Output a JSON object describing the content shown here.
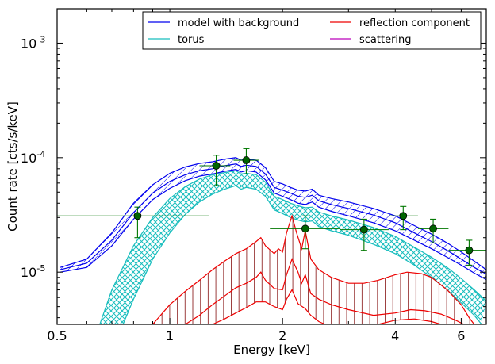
{
  "chart_data": {
    "type": "line",
    "xlabel": "Energy [keV]",
    "ylabel": "Count rate [cts/s/keV]",
    "x_scale": "log",
    "y_scale": "log",
    "xlim": [
      0.5,
      7.0
    ],
    "ylim": [
      3.5e-06,
      0.002
    ],
    "x_ticks": [
      {
        "value": 0.5,
        "label": "0.5"
      },
      {
        "value": 1,
        "label": "1"
      },
      {
        "value": 2,
        "label": "2"
      },
      {
        "value": 4,
        "label": "4"
      },
      {
        "value": 6,
        "label": "6"
      }
    ],
    "y_ticks": [
      {
        "value": 1e-05,
        "base": "10",
        "exp": "-5"
      },
      {
        "value": 0.0001,
        "base": "10",
        "exp": "-4"
      },
      {
        "value": 0.001,
        "base": "10",
        "exp": "-3"
      }
    ],
    "legend": {
      "placement": "top-right",
      "columns": 2,
      "entries": [
        {
          "name": "model with background",
          "color": "#0000ee"
        },
        {
          "name": "torus",
          "color": "#18bdbd"
        },
        {
          "name": "reflection component",
          "color": "#ee0000"
        },
        {
          "name": "scattering",
          "color": "#bb00bb"
        }
      ]
    },
    "colors": {
      "model": "#0000ee",
      "torus": "#18bdbd",
      "reflection": "#ee0000",
      "reflection_hatch": "#9b3b3b",
      "data": "#007700",
      "data_marker": "#006400"
    },
    "series": [
      {
        "name": "model with background",
        "band": true,
        "upper": [
          [
            0.51,
            1.1e-05
          ],
          [
            0.6,
            1.3e-05
          ],
          [
            0.7,
            2.2e-05
          ],
          [
            0.8,
            4e-05
          ],
          [
            0.9,
            5.8e-05
          ],
          [
            1.0,
            7.3e-05
          ],
          [
            1.1,
            8.3e-05
          ],
          [
            1.2,
            8.9e-05
          ],
          [
            1.3,
            9.2e-05
          ],
          [
            1.4,
            9.7e-05
          ],
          [
            1.5,
            0.0001
          ],
          [
            1.55,
            9.5e-05
          ],
          [
            1.6,
            9.7e-05
          ],
          [
            1.7,
            9.5e-05
          ],
          [
            1.8,
            8.2e-05
          ],
          [
            1.9,
            6.2e-05
          ],
          [
            2.0,
            5.9e-05
          ],
          [
            2.1,
            5.5e-05
          ],
          [
            2.2,
            5.2e-05
          ],
          [
            2.3,
            5.1e-05
          ],
          [
            2.4,
            5.3e-05
          ],
          [
            2.5,
            4.7e-05
          ],
          [
            2.7,
            4.4e-05
          ],
          [
            3.0,
            4.1e-05
          ],
          [
            3.5,
            3.6e-05
          ],
          [
            4.0,
            3.1e-05
          ],
          [
            4.5,
            2.55e-05
          ],
          [
            5.0,
            2.15e-05
          ],
          [
            5.5,
            1.8e-05
          ],
          [
            6.0,
            1.5e-05
          ],
          [
            6.5,
            1.25e-05
          ],
          [
            7.0,
            1.05e-05
          ]
        ],
        "mid": [
          [
            0.51,
            1.05e-05
          ],
          [
            0.6,
            1.2e-05
          ],
          [
            0.7,
            1.9e-05
          ],
          [
            0.8,
            3.3e-05
          ],
          [
            0.9,
            4.9e-05
          ],
          [
            1.0,
            6.2e-05
          ],
          [
            1.1,
            7.1e-05
          ],
          [
            1.2,
            7.7e-05
          ],
          [
            1.3,
            8e-05
          ],
          [
            1.4,
            8.5e-05
          ],
          [
            1.5,
            8.8e-05
          ],
          [
            1.55,
            8.4e-05
          ],
          [
            1.6,
            8.6e-05
          ],
          [
            1.7,
            8.4e-05
          ],
          [
            1.8,
            7.2e-05
          ],
          [
            1.9,
            5.5e-05
          ],
          [
            2.0,
            5.2e-05
          ],
          [
            2.1,
            4.9e-05
          ],
          [
            2.2,
            4.6e-05
          ],
          [
            2.3,
            4.5e-05
          ],
          [
            2.4,
            4.7e-05
          ],
          [
            2.5,
            4.2e-05
          ],
          [
            2.7,
            3.9e-05
          ],
          [
            3.0,
            3.6e-05
          ],
          [
            3.5,
            3.15e-05
          ],
          [
            4.0,
            2.7e-05
          ],
          [
            4.5,
            2.2e-05
          ],
          [
            5.0,
            1.85e-05
          ],
          [
            5.5,
            1.55e-05
          ],
          [
            6.0,
            1.3e-05
          ],
          [
            6.5,
            1.1e-05
          ],
          [
            7.0,
            9.6e-06
          ]
        ],
        "lower": [
          [
            0.51,
            1e-05
          ],
          [
            0.6,
            1.1e-05
          ],
          [
            0.7,
            1.7e-05
          ],
          [
            0.8,
            2.9e-05
          ],
          [
            0.9,
            4.3e-05
          ],
          [
            1.0,
            5.4e-05
          ],
          [
            1.1,
            6.3e-05
          ],
          [
            1.2,
            6.9e-05
          ],
          [
            1.3,
            7.2e-05
          ],
          [
            1.4,
            7.6e-05
          ],
          [
            1.5,
            7.9e-05
          ],
          [
            1.55,
            7.5e-05
          ],
          [
            1.6,
            7.7e-05
          ],
          [
            1.7,
            7.5e-05
          ],
          [
            1.8,
            6.4e-05
          ],
          [
            1.9,
            4.9e-05
          ],
          [
            2.0,
            4.6e-05
          ],
          [
            2.1,
            4.3e-05
          ],
          [
            2.2,
            4e-05
          ],
          [
            2.3,
            3.9e-05
          ],
          [
            2.4,
            4.1e-05
          ],
          [
            2.5,
            3.7e-05
          ],
          [
            2.7,
            3.4e-05
          ],
          [
            3.0,
            3.1e-05
          ],
          [
            3.5,
            2.7e-05
          ],
          [
            4.0,
            2.3e-05
          ],
          [
            4.5,
            1.9e-05
          ],
          [
            5.0,
            1.6e-05
          ],
          [
            5.5,
            1.35e-05
          ],
          [
            6.0,
            1.15e-05
          ],
          [
            6.5,
            9.8e-06
          ],
          [
            7.0,
            8.6e-06
          ]
        ]
      },
      {
        "name": "torus",
        "band": true,
        "upper": [
          [
            0.65,
            3.5e-06
          ],
          [
            0.7,
            7e-06
          ],
          [
            0.8,
            1.7e-05
          ],
          [
            0.9,
            3e-05
          ],
          [
            1.0,
            4.4e-05
          ],
          [
            1.1,
            5.6e-05
          ],
          [
            1.2,
            6.5e-05
          ],
          [
            1.3,
            7.1e-05
          ],
          [
            1.4,
            7.4e-05
          ],
          [
            1.5,
            7.7e-05
          ],
          [
            1.55,
            7.2e-05
          ],
          [
            1.6,
            7.3e-05
          ],
          [
            1.7,
            7.1e-05
          ],
          [
            1.8,
            6.1e-05
          ],
          [
            1.9,
            4.6e-05
          ],
          [
            2.0,
            4.3e-05
          ],
          [
            2.1,
            4e-05
          ],
          [
            2.2,
            3.8e-05
          ],
          [
            2.3,
            3.65e-05
          ],
          [
            2.4,
            3.7e-05
          ],
          [
            2.5,
            3.35e-05
          ],
          [
            2.7,
            3.1e-05
          ],
          [
            3.0,
            2.85e-05
          ],
          [
            3.5,
            2.45e-05
          ],
          [
            4.0,
            2.05e-05
          ],
          [
            4.5,
            1.65e-05
          ],
          [
            5.0,
            1.35e-05
          ],
          [
            5.5,
            1.1e-05
          ],
          [
            6.0,
            8.8e-06
          ],
          [
            6.5,
            7e-06
          ],
          [
            7.0,
            5.6e-06
          ]
        ],
        "lower": [
          [
            0.75,
            3.5e-06
          ],
          [
            0.8,
            5.8e-06
          ],
          [
            0.9,
            1.3e-05
          ],
          [
            1.0,
            2.2e-05
          ],
          [
            1.1,
            3.2e-05
          ],
          [
            1.2,
            4.1e-05
          ],
          [
            1.3,
            4.8e-05
          ],
          [
            1.4,
            5.3e-05
          ],
          [
            1.5,
            5.7e-05
          ],
          [
            1.55,
            5.3e-05
          ],
          [
            1.6,
            5.5e-05
          ],
          [
            1.7,
            5.3e-05
          ],
          [
            1.8,
            4.6e-05
          ],
          [
            1.9,
            3.5e-05
          ],
          [
            2.0,
            3.25e-05
          ],
          [
            2.1,
            3e-05
          ],
          [
            2.2,
            2.85e-05
          ],
          [
            2.3,
            2.75e-05
          ],
          [
            2.4,
            2.8e-05
          ],
          [
            2.5,
            2.5e-05
          ],
          [
            2.7,
            2.3e-05
          ],
          [
            3.0,
            2.1e-05
          ],
          [
            3.5,
            1.75e-05
          ],
          [
            4.0,
            1.45e-05
          ],
          [
            4.5,
            1.15e-05
          ],
          [
            5.0,
            9e-06
          ],
          [
            5.5,
            7e-06
          ],
          [
            6.0,
            5.4e-06
          ],
          [
            6.5,
            4.2e-06
          ],
          [
            6.8,
            3.5e-06
          ]
        ]
      },
      {
        "name": "reflection component",
        "band": true,
        "upper": [
          [
            0.9,
            3.5e-06
          ],
          [
            1.0,
            5.2e-06
          ],
          [
            1.1,
            6.8e-06
          ],
          [
            1.2,
            8.5e-06
          ],
          [
            1.3,
            1.05e-05
          ],
          [
            1.4,
            1.25e-05
          ],
          [
            1.5,
            1.45e-05
          ],
          [
            1.6,
            1.6e-05
          ],
          [
            1.7,
            1.85e-05
          ],
          [
            1.75,
            2e-05
          ],
          [
            1.8,
            1.7e-05
          ],
          [
            1.9,
            1.45e-05
          ],
          [
            1.95,
            1.6e-05
          ],
          [
            2.0,
            1.5e-05
          ],
          [
            2.05,
            2.2e-05
          ],
          [
            2.12,
            3.1e-05
          ],
          [
            2.18,
            2.2e-05
          ],
          [
            2.25,
            1.6e-05
          ],
          [
            2.3,
            2.3e-05
          ],
          [
            2.38,
            1.3e-05
          ],
          [
            2.5,
            1.05e-05
          ],
          [
            2.7,
            9e-06
          ],
          [
            3.0,
            8e-06
          ],
          [
            3.3,
            8e-06
          ],
          [
            3.6,
            8.5e-06
          ],
          [
            4.0,
            9.5e-06
          ],
          [
            4.3,
            1e-05
          ],
          [
            4.7,
            9.7e-06
          ],
          [
            5.0,
            9e-06
          ],
          [
            5.5,
            7e-06
          ],
          [
            6.0,
            5.2e-06
          ],
          [
            6.3,
            4e-06
          ],
          [
            6.5,
            3.5e-06
          ]
        ],
        "lower": [
          [
            1.3,
            3.5e-06
          ],
          [
            1.4,
            3.9e-06
          ],
          [
            1.5,
            4.4e-06
          ],
          [
            1.6,
            4.9e-06
          ],
          [
            1.7,
            5.5e-06
          ],
          [
            1.8,
            5.5e-06
          ],
          [
            1.9,
            5e-06
          ],
          [
            2.0,
            4.7e-06
          ],
          [
            2.05,
            5.8e-06
          ],
          [
            2.12,
            7e-06
          ],
          [
            2.2,
            5.3e-06
          ],
          [
            2.3,
            4.8e-06
          ],
          [
            2.38,
            4.2e-06
          ],
          [
            2.5,
            3.7e-06
          ],
          [
            2.6,
            3.5e-06
          ],
          [
            3.6,
            3.5e-06
          ],
          [
            4.0,
            3.8e-06
          ],
          [
            4.5,
            3.9e-06
          ],
          [
            5.0,
            3.7e-06
          ],
          [
            5.3,
            3.5e-06
          ]
        ],
        "mid": [
          [
            1.1,
            3.5e-06
          ],
          [
            1.2,
            4.2e-06
          ],
          [
            1.3,
            5.2e-06
          ],
          [
            1.4,
            6.2e-06
          ],
          [
            1.5,
            7.3e-06
          ],
          [
            1.6,
            8e-06
          ],
          [
            1.7,
            9e-06
          ],
          [
            1.75,
            1e-05
          ],
          [
            1.8,
            8.5e-06
          ],
          [
            1.9,
            7.2e-06
          ],
          [
            2.0,
            7e-06
          ],
          [
            2.05,
            9.5e-06
          ],
          [
            2.12,
            1.3e-05
          ],
          [
            2.2,
            1e-05
          ],
          [
            2.25,
            8e-06
          ],
          [
            2.3,
            9.5e-06
          ],
          [
            2.38,
            6.5e-06
          ],
          [
            2.5,
            5.8e-06
          ],
          [
            2.7,
            5.2e-06
          ],
          [
            3.0,
            4.7e-06
          ],
          [
            3.5,
            4.2e-06
          ],
          [
            4.0,
            4.4e-06
          ],
          [
            4.4,
            4.7e-06
          ],
          [
            4.8,
            4.6e-06
          ],
          [
            5.3,
            4.3e-06
          ],
          [
            5.8,
            3.8e-06
          ],
          [
            6.1,
            3.5e-06
          ]
        ]
      }
    ],
    "data_points": [
      {
        "x": 0.82,
        "y": 3.1e-05,
        "xerr": [
          0.5,
          1.27
        ],
        "yerr": [
          2e-05,
          3.7e-05
        ]
      },
      {
        "x": 1.33,
        "y": 8.5e-05,
        "xerr": [
          1.2,
          1.45
        ],
        "yerr": [
          5.7e-05,
          0.000105
        ]
      },
      {
        "x": 1.6,
        "y": 9.5e-05,
        "xerr": [
          1.48,
          1.73
        ],
        "yerr": [
          7.2e-05,
          0.00012
        ]
      },
      {
        "x": 2.3,
        "y": 2.4e-05,
        "xerr": [
          1.85,
          2.85
        ],
        "yerr": [
          1.6e-05,
          3.1e-05
        ]
      },
      {
        "x": 3.3,
        "y": 2.35e-05,
        "xerr": [
          2.85,
          3.85
        ],
        "yerr": [
          1.55e-05,
          2.9e-05
        ]
      },
      {
        "x": 4.2,
        "y": 3.1e-05,
        "xerr": [
          3.85,
          4.6
        ],
        "yerr": [
          2.35e-05,
          3.75e-05
        ]
      },
      {
        "x": 5.05,
        "y": 2.4e-05,
        "xerr": [
          4.6,
          5.55
        ],
        "yerr": [
          1.8e-05,
          2.9e-05
        ]
      },
      {
        "x": 6.3,
        "y": 1.55e-05,
        "xerr": [
          5.55,
          7.0
        ],
        "yerr": [
          1.15e-05,
          1.9e-05
        ]
      }
    ]
  }
}
